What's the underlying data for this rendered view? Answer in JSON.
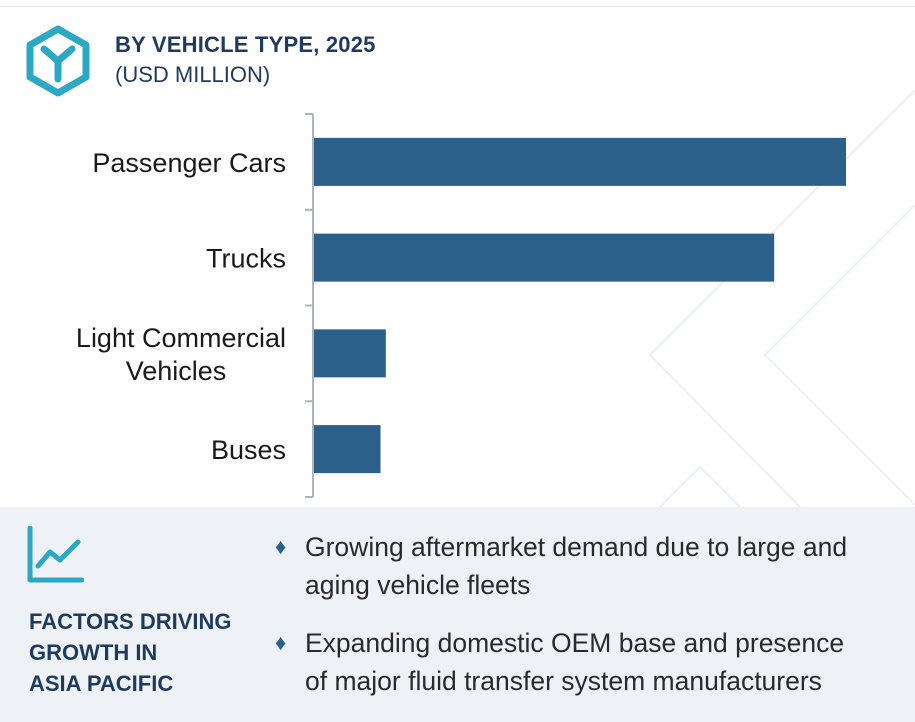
{
  "header": {
    "title": "BY VEHICLE TYPE, 2025",
    "subtitle": "(USD MILLION)",
    "logo_icon": "y-hexagon-logo-icon"
  },
  "colors": {
    "bar": "#2d5f8b",
    "title": "#1e3a5f",
    "accent": "#2aa8c4",
    "panel": "#eef1f6"
  },
  "chart_data": {
    "type": "bar",
    "orientation": "horizontal",
    "title": "BY VEHICLE TYPE, 2025",
    "subtitle": "(USD MILLION)",
    "categories": [
      "Passenger Cars",
      "Trucks",
      "Light Commercial Vehicles",
      "Buses"
    ],
    "category_lines": [
      [
        "Passenger Cars"
      ],
      [
        "Trucks"
      ],
      [
        "Light Commercial",
        "Vehicles"
      ],
      [
        "Buses"
      ]
    ],
    "values": [
      100,
      86.5,
      13.5,
      12.5
    ],
    "xlim": [
      0,
      100
    ],
    "grid": false,
    "legend": "none"
  },
  "factors": {
    "icon": "line-chart-trend-icon",
    "title_lines": [
      "FACTORS DRIVING",
      "GROWTH IN",
      "ASIA PACIFIC"
    ],
    "bullet_icon": "diamond-bullet-icon",
    "bullets": [
      {
        "lines": [
          "Growing aftermarket demand due to large and",
          "aging vehicle fleets"
        ]
      },
      {
        "lines": [
          "Expanding domestic OEM base and presence",
          "of major fluid transfer system manufacturers"
        ]
      }
    ]
  }
}
